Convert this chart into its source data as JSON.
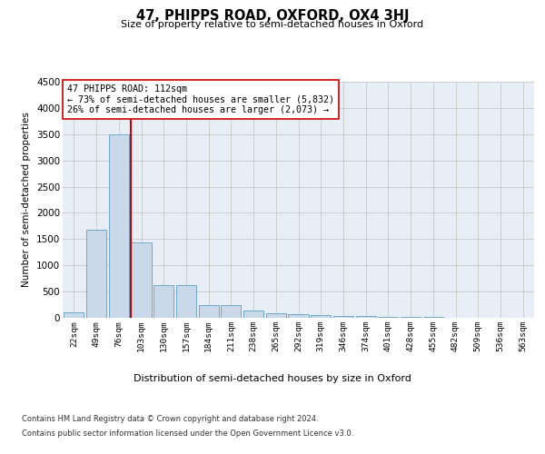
{
  "title": "47, PHIPPS ROAD, OXFORD, OX4 3HJ",
  "subtitle": "Size of property relative to semi-detached houses in Oxford",
  "xlabel": "Distribution of semi-detached houses by size in Oxford",
  "ylabel": "Number of semi-detached properties",
  "property_label": "47 PHIPPS ROAD: 112sqm",
  "pct_smaller": 73,
  "n_smaller": 5832,
  "pct_larger": 26,
  "n_larger": 2073,
  "bin_labels": [
    "22sqm",
    "49sqm",
    "76sqm",
    "103sqm",
    "130sqm",
    "157sqm",
    "184sqm",
    "211sqm",
    "238sqm",
    "265sqm",
    "292sqm",
    "319sqm",
    "346sqm",
    "374sqm",
    "401sqm",
    "428sqm",
    "455sqm",
    "482sqm",
    "509sqm",
    "536sqm",
    "563sqm"
  ],
  "bar_values": [
    100,
    1680,
    3490,
    1430,
    620,
    620,
    250,
    250,
    140,
    80,
    70,
    50,
    40,
    30,
    20,
    15,
    10,
    8,
    5,
    5,
    5
  ],
  "bar_color": "#c9d9ea",
  "bar_edgecolor": "#6fa8c8",
  "vline_color": "#cc0000",
  "vline_bin_index": 3,
  "annotation_box_color": "#ffffff",
  "annotation_box_edgecolor": "#cc0000",
  "grid_color": "#cccccc",
  "background_color": "#e8eef5",
  "ylim": [
    0,
    4500
  ],
  "yticks": [
    0,
    500,
    1000,
    1500,
    2000,
    2500,
    3000,
    3500,
    4000,
    4500
  ],
  "footer_line1": "Contains HM Land Registry data © Crown copyright and database right 2024.",
  "footer_line2": "Contains public sector information licensed under the Open Government Licence v3.0."
}
